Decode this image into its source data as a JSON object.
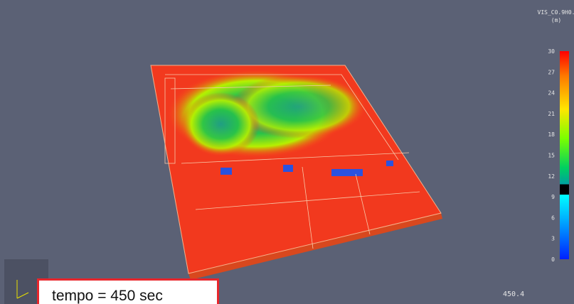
{
  "colorbar": {
    "title": "VIS_C0.9H0.",
    "unit": "(m)",
    "ticks": [
      30,
      27,
      24,
      21,
      18,
      15,
      12,
      9,
      6,
      3,
      0
    ],
    "highlighted_tick": 9,
    "highlight_color": "#ff2a2a"
  },
  "time": "450.4",
  "caption": "tempo = 450 sec"
}
